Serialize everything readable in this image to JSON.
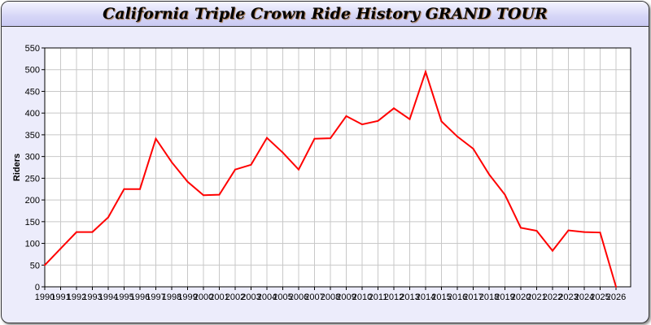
{
  "title": "California Triple Crown Ride History GRAND TOUR",
  "chart_data": {
    "type": "line",
    "title": "California Triple Crown Ride History GRAND TOUR",
    "xlabel": "",
    "ylabel": "Riders",
    "ylim": [
      0,
      550
    ],
    "yticks": [
      0,
      50,
      100,
      150,
      200,
      250,
      300,
      350,
      400,
      450,
      500,
      550
    ],
    "grid": true,
    "line_color": "#ff0000",
    "x": [
      1990,
      1991,
      1992,
      1993,
      1994,
      1995,
      1996,
      1997,
      1998,
      1999,
      2000,
      2001,
      2002,
      2003,
      2004,
      2005,
      2006,
      2007,
      2008,
      2009,
      2010,
      2011,
      2012,
      2013,
      2014,
      2015,
      2016,
      2017,
      2018,
      2019,
      2020,
      2021,
      2022,
      2023,
      2024,
      2025,
      2026
    ],
    "values": [
      50,
      88,
      126,
      126,
      160,
      225,
      225,
      341,
      287,
      242,
      211,
      212,
      270,
      281,
      343,
      309,
      270,
      341,
      342,
      393,
      374,
      382,
      411,
      386,
      495,
      381,
      346,
      318,
      259,
      212,
      136,
      129,
      83,
      130,
      126,
      125,
      0
    ]
  }
}
